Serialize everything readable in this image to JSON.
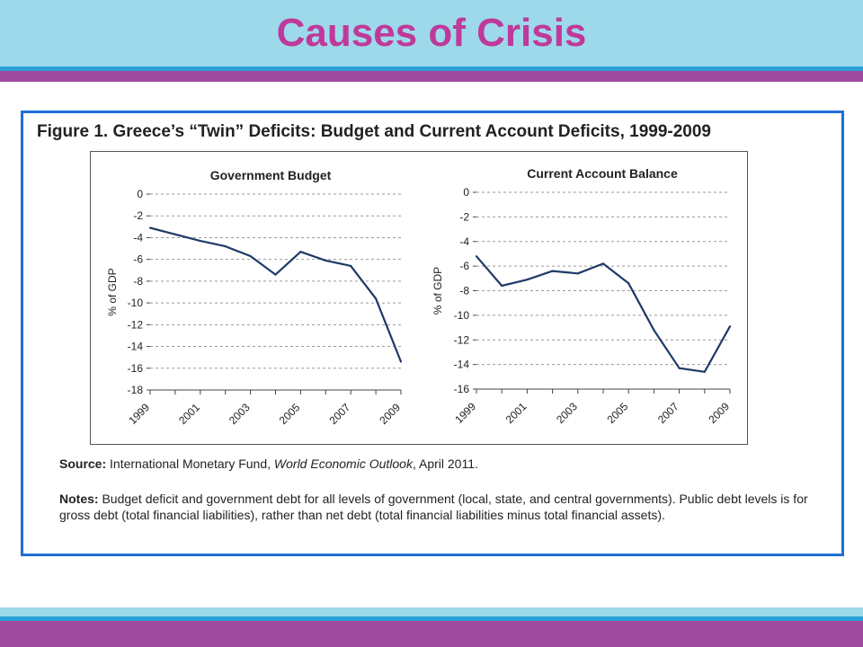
{
  "slide": {
    "title": "Causes of Crisis"
  },
  "figure": {
    "title": "Figure 1. Greece’s “Twin” Deficits: Budget and Current Account Deficits, 1999-2009",
    "source_label": "Source:",
    "source_text": " International Monetary Fund, ",
    "source_publication": "World Economic Outlook",
    "source_date": ", April 2011.",
    "notes_label": "Notes:",
    "notes_text": " Budget deficit and government debt for all levels of government (local, state, and central governments). Public debt levels is for gross debt (total financial liabilities), rather than net debt (total financial liabilities minus total financial assets)."
  },
  "colors": {
    "line": "#1f3a68",
    "frame": "#1f6fd6",
    "title": "#c0399a",
    "grid": "#9a9a9a"
  },
  "chart_data": [
    {
      "type": "line",
      "title": "Government Budget",
      "ylabel": "% of GDP",
      "xlabel": "",
      "x": [
        1999,
        2000,
        2001,
        2002,
        2003,
        2004,
        2005,
        2006,
        2007,
        2008,
        2009
      ],
      "xtick_labels": [
        "1999",
        "2001",
        "2003",
        "2005",
        "2007",
        "2009"
      ],
      "ylim": [
        -18,
        0
      ],
      "yticks": [
        0,
        -2,
        -4,
        -6,
        -8,
        -10,
        -12,
        -14,
        -16,
        -18
      ],
      "grid": true,
      "series": [
        {
          "values": [
            -3.1,
            -3.7,
            -4.3,
            -4.8,
            -5.7,
            -7.4,
            -5.3,
            -6.1,
            -6.6,
            -9.6,
            -15.4
          ]
        }
      ]
    },
    {
      "type": "line",
      "title": "Current Account Balance",
      "ylabel": "% of GDP",
      "xlabel": "",
      "x": [
        1999,
        2000,
        2001,
        2002,
        2003,
        2004,
        2005,
        2006,
        2007,
        2008,
        2009
      ],
      "xtick_labels": [
        "1999",
        "2001",
        "2003",
        "2005",
        "2007",
        "2009"
      ],
      "ylim": [
        -16,
        0
      ],
      "yticks": [
        0,
        -2,
        -4,
        -6,
        -8,
        -10,
        -12,
        -14,
        -16
      ],
      "grid": true,
      "series": [
        {
          "values": [
            -5.2,
            -7.6,
            -7.1,
            -6.4,
            -6.6,
            -5.8,
            -7.4,
            -11.2,
            -14.3,
            -14.6,
            -10.9
          ]
        }
      ]
    }
  ]
}
